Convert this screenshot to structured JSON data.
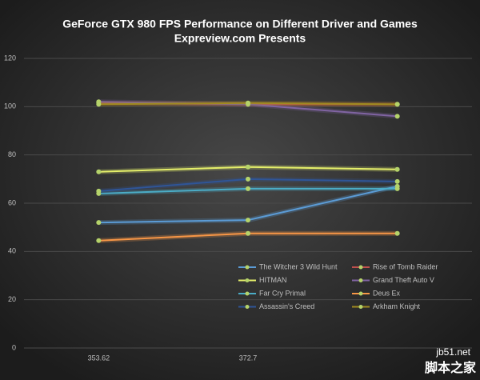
{
  "chart_data": {
    "type": "line",
    "title": "GeForce GTX 980 FPS  Performance on Different Driver and Games",
    "subtitle": "Expreview.com Presents",
    "categories": [
      "353.62",
      "372.7",
      null
    ],
    "series": [
      {
        "name": "The Witcher 3 Wild Hunt",
        "color": "#5b9bd5",
        "values": [
          52,
          53,
          67
        ]
      },
      {
        "name": "Rise of Tomb Raider",
        "color": "#c0504d",
        "values": [
          101.5,
          101,
          101
        ]
      },
      {
        "name": "HITMAN",
        "color": "#e4ee6a",
        "values": [
          73,
          75,
          74
        ]
      },
      {
        "name": "Grand Theft Auto V",
        "color": "#8064a2",
        "values": [
          102,
          101,
          96
        ]
      },
      {
        "name": "Far Cry Primal",
        "color": "#4bacc6",
        "values": [
          64,
          66,
          66
        ]
      },
      {
        "name": "Deus Ex",
        "color": "#f79646",
        "values": [
          44.5,
          47.5,
          47.5
        ]
      },
      {
        "name": "Assassin's Creed",
        "color": "#2f5597",
        "values": [
          65,
          70,
          69
        ]
      },
      {
        "name": "Arkham Knight",
        "color": "#a08a20",
        "values": [
          101,
          101.5,
          101
        ]
      }
    ],
    "marker_color": "#b5d36a",
    "ylim": [
      0,
      120
    ],
    "yticks": [
      0,
      20,
      40,
      60,
      80,
      100,
      120
    ],
    "grid": true,
    "legend": "bottom-right",
    "watermark": {
      "site": "jb51.net",
      "name": "脚本之家"
    }
  }
}
